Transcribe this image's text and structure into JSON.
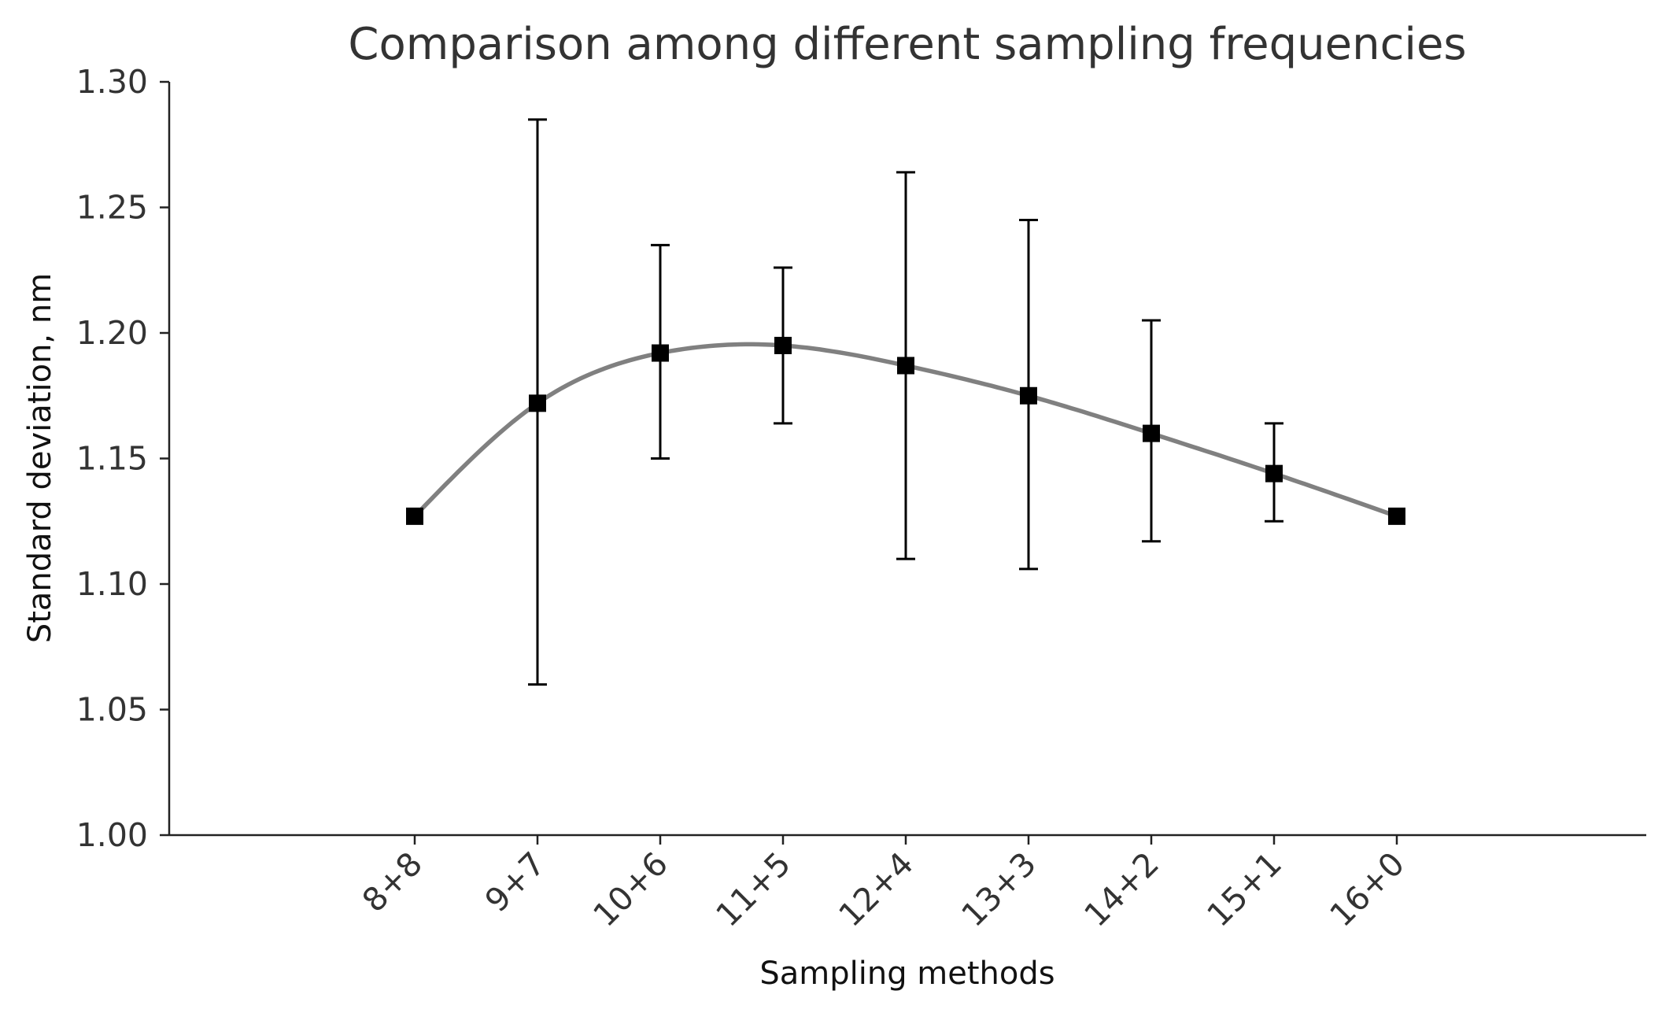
{
  "chart_data": {
    "type": "line",
    "title": "Comparison among different sampling frequencies",
    "xlabel": "Sampling methods",
    "ylabel": "Standard deviation, nm",
    "categories": [
      "8+8",
      "9+7",
      "10+6",
      "11+5",
      "12+4",
      "13+3",
      "14+2",
      "15+1",
      "16+0"
    ],
    "series": [
      {
        "name": "Standard deviation",
        "values": [
          1.127,
          1.172,
          1.192,
          1.195,
          1.187,
          1.175,
          1.16,
          1.144,
          1.127
        ],
        "error_low": [
          null,
          1.06,
          1.15,
          1.164,
          1.11,
          1.106,
          1.117,
          1.125,
          null
        ],
        "error_high": [
          null,
          1.285,
          1.235,
          1.226,
          1.264,
          1.245,
          1.205,
          1.164,
          null
        ]
      }
    ],
    "ylim": [
      1.0,
      1.3
    ],
    "yticks": [
      "1.00",
      "1.05",
      "1.10",
      "1.15",
      "1.20",
      "1.25",
      "1.30"
    ],
    "grid": false,
    "colors": {
      "curve": "#808080",
      "markers": "#000000",
      "error_bars": "#000000",
      "axes": "#222222",
      "text": "#333333"
    }
  }
}
